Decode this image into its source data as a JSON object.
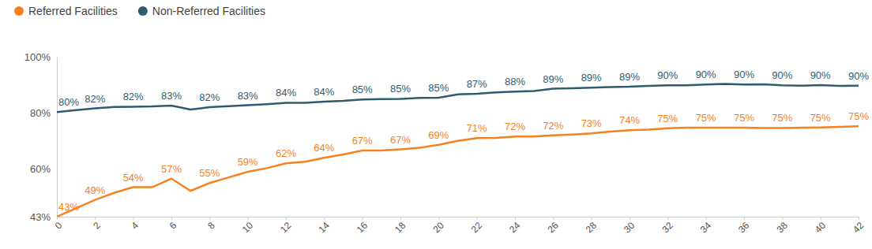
{
  "chart_data": {
    "type": "line",
    "x": [
      0,
      1,
      2,
      3,
      4,
      5,
      6,
      7,
      8,
      9,
      10,
      11,
      12,
      13,
      14,
      15,
      16,
      17,
      18,
      19,
      20,
      21,
      22,
      23,
      24,
      25,
      26,
      27,
      28,
      29,
      30,
      31,
      32,
      33,
      34,
      35,
      36,
      37,
      38,
      39,
      40,
      41,
      42
    ],
    "xlim": [
      0,
      42
    ],
    "xticks": [
      0,
      2,
      4,
      6,
      8,
      10,
      12,
      14,
      16,
      18,
      20,
      22,
      24,
      26,
      28,
      30,
      32,
      34,
      36,
      38,
      40,
      42
    ],
    "ylim": [
      43,
      100
    ],
    "yticks": [
      {
        "value": 43,
        "label": "43%"
      },
      {
        "value": 60,
        "label": "60%"
      },
      {
        "value": 80,
        "label": "80%"
      },
      {
        "value": 100,
        "label": "100%"
      }
    ],
    "grid": false,
    "legend": "top-left",
    "data_labels": true,
    "series": [
      {
        "name": "Referred Facilities",
        "color": "#f5821f",
        "marker": "none",
        "line_style": "solid",
        "values": [
          43,
          46,
          49,
          51.5,
          53.5,
          53.5,
          56.6,
          52.2,
          55,
          57,
          59,
          60.3,
          62,
          62.6,
          64,
          65.2,
          66.6,
          66.6,
          67,
          67.6,
          68.6,
          70,
          71,
          71.1,
          71.6,
          71.6,
          72,
          72.3,
          72.7,
          73.3,
          73.8,
          74,
          74.5,
          74.7,
          74.7,
          74.7,
          74.7,
          74.6,
          74.6,
          74.7,
          74.8,
          75,
          75.2
        ],
        "value_labels": [
          "43%",
          null,
          "49%",
          null,
          "54%",
          null,
          "57%",
          null,
          "55%",
          null,
          "59%",
          null,
          "62%",
          null,
          "64%",
          null,
          "67%",
          null,
          "67%",
          null,
          "69%",
          null,
          "71%",
          null,
          "72%",
          null,
          "72%",
          null,
          "73%",
          null,
          "74%",
          null,
          "75%",
          null,
          "75%",
          null,
          "75%",
          null,
          "75%",
          null,
          "75%",
          null,
          "75%"
        ]
      },
      {
        "name": "Non-Referred Facilities",
        "color": "#2e5b70",
        "marker": "none",
        "line_style": "solid",
        "values": [
          80.3,
          81,
          81.6,
          82.1,
          82.2,
          82.3,
          82.6,
          81.2,
          82,
          82.4,
          82.7,
          83.1,
          83.6,
          83.6,
          84,
          84.3,
          84.8,
          84.9,
          85,
          85.3,
          85.4,
          86.6,
          86.8,
          87.3,
          87.6,
          87.8,
          88.6,
          88.8,
          89,
          89.2,
          89.3,
          89.6,
          89.8,
          89.8,
          90.1,
          90.3,
          90.1,
          90.2,
          89.8,
          89.7,
          89.9,
          89.6,
          89.7
        ],
        "value_labels": [
          "80%",
          null,
          "82%",
          null,
          "82%",
          null,
          "83%",
          null,
          "82%",
          null,
          "83%",
          null,
          "84%",
          null,
          "84%",
          null,
          "85%",
          null,
          "85%",
          null,
          "85%",
          null,
          "87%",
          null,
          "88%",
          null,
          "89%",
          null,
          "89%",
          null,
          "89%",
          null,
          "90%",
          null,
          "90%",
          null,
          "90%",
          null,
          "90%",
          null,
          "90%",
          null,
          "90%"
        ]
      }
    ]
  }
}
